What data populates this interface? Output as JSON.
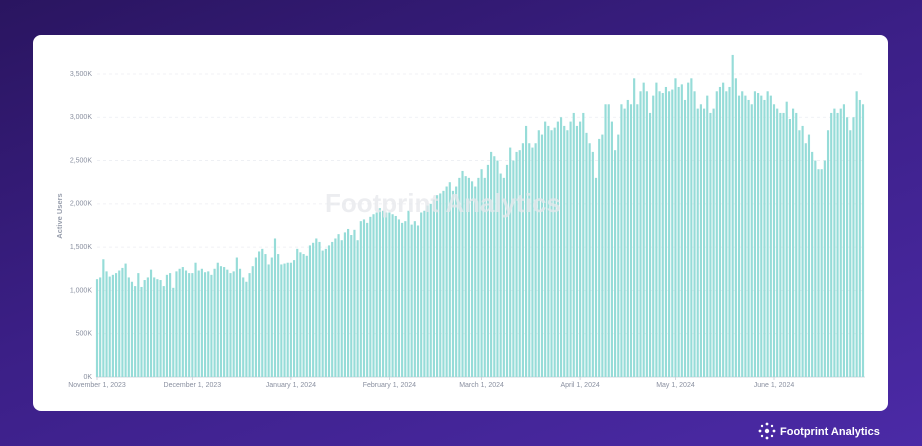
{
  "chart_data": {
    "type": "bar",
    "y_label": "Active Users",
    "watermark": "Footprint Analytics",
    "brand": "Footprint Analytics",
    "color": "#96dcd8",
    "grid": true,
    "ylim": [
      0,
      3800000
    ],
    "yticks": [
      {
        "value": 0,
        "label": "0K"
      },
      {
        "value": 500000,
        "label": "500K"
      },
      {
        "value": 1000000,
        "label": "1,000K"
      },
      {
        "value": 1500000,
        "label": "1,500K"
      },
      {
        "value": 2000000,
        "label": "2,000K"
      },
      {
        "value": 2500000,
        "label": "2,500K"
      },
      {
        "value": 3000000,
        "label": "3,000K"
      },
      {
        "value": 3500000,
        "label": "3,500K"
      }
    ],
    "xlim": [
      "2023-11-01",
      "2024-06-29"
    ],
    "xticks": [
      {
        "value": "2023-11-01",
        "label": "November 1, 2023"
      },
      {
        "value": "2023-12-01",
        "label": "December 1, 2023"
      },
      {
        "value": "2024-01-01",
        "label": "January 1, 2024"
      },
      {
        "value": "2024-02-01",
        "label": "February 1, 2024"
      },
      {
        "value": "2024-03-01",
        "label": "March 1, 2024"
      },
      {
        "value": "2024-04-01",
        "label": "April 1, 2024"
      },
      {
        "value": "2024-05-01",
        "label": "May 1, 2024"
      },
      {
        "value": "2024-06-01",
        "label": "June 1, 2024"
      }
    ],
    "x": [
      "2023-11-01",
      "2023-11-02",
      "2023-11-03",
      "2023-11-04",
      "2023-11-05",
      "2023-11-06",
      "2023-11-07",
      "2023-11-08",
      "2023-11-09",
      "2023-11-10",
      "2023-11-11",
      "2023-11-12",
      "2023-11-13",
      "2023-11-14",
      "2023-11-15",
      "2023-11-16",
      "2023-11-17",
      "2023-11-18",
      "2023-11-19",
      "2023-11-20",
      "2023-11-21",
      "2023-11-22",
      "2023-11-23",
      "2023-11-24",
      "2023-11-25",
      "2023-11-26",
      "2023-11-27",
      "2023-11-28",
      "2023-11-29",
      "2023-11-30",
      "2023-12-01",
      "2023-12-02",
      "2023-12-03",
      "2023-12-04",
      "2023-12-05",
      "2023-12-06",
      "2023-12-07",
      "2023-12-08",
      "2023-12-09",
      "2023-12-10",
      "2023-12-11",
      "2023-12-12",
      "2023-12-13",
      "2023-12-14",
      "2023-12-15",
      "2023-12-16",
      "2023-12-17",
      "2023-12-18",
      "2023-12-19",
      "2023-12-20",
      "2023-12-21",
      "2023-12-22",
      "2023-12-23",
      "2023-12-24",
      "2023-12-25",
      "2023-12-26",
      "2023-12-27",
      "2023-12-28",
      "2023-12-29",
      "2023-12-30",
      "2023-12-31",
      "2024-01-01",
      "2024-01-02",
      "2024-01-03",
      "2024-01-04",
      "2024-01-05",
      "2024-01-06",
      "2024-01-07",
      "2024-01-08",
      "2024-01-09",
      "2024-01-10",
      "2024-01-11",
      "2024-01-12",
      "2024-01-13",
      "2024-01-14",
      "2024-01-15",
      "2024-01-16",
      "2024-01-17",
      "2024-01-18",
      "2024-01-19",
      "2024-01-20",
      "2024-01-21",
      "2024-01-22",
      "2024-01-23",
      "2024-01-24",
      "2024-01-25",
      "2024-01-26",
      "2024-01-27",
      "2024-01-28",
      "2024-01-29",
      "2024-01-30",
      "2024-01-31",
      "2024-02-01",
      "2024-02-02",
      "2024-02-03",
      "2024-02-04",
      "2024-02-05",
      "2024-02-06",
      "2024-02-07",
      "2024-02-08",
      "2024-02-09",
      "2024-02-10",
      "2024-02-11",
      "2024-02-12",
      "2024-02-13",
      "2024-02-14",
      "2024-02-15",
      "2024-02-16",
      "2024-02-17",
      "2024-02-18",
      "2024-02-19",
      "2024-02-20",
      "2024-02-21",
      "2024-02-22",
      "2024-02-23",
      "2024-02-24",
      "2024-02-25",
      "2024-02-26",
      "2024-02-27",
      "2024-02-28",
      "2024-02-29",
      "2024-03-01",
      "2024-03-02",
      "2024-03-03",
      "2024-03-04",
      "2024-03-05",
      "2024-03-06",
      "2024-03-07",
      "2024-03-08",
      "2024-03-09",
      "2024-03-10",
      "2024-03-11",
      "2024-03-12",
      "2024-03-13",
      "2024-03-14",
      "2024-03-15",
      "2024-03-16",
      "2024-03-17",
      "2024-03-18",
      "2024-03-19",
      "2024-03-20",
      "2024-03-21",
      "2024-03-22",
      "2024-03-23",
      "2024-03-24",
      "2024-03-25",
      "2024-03-26",
      "2024-03-27",
      "2024-03-28",
      "2024-03-29",
      "2024-03-30",
      "2024-03-31",
      "2024-04-01",
      "2024-04-02",
      "2024-04-03",
      "2024-04-04",
      "2024-04-05",
      "2024-04-06",
      "2024-04-07",
      "2024-04-08",
      "2024-04-09",
      "2024-04-10",
      "2024-04-11",
      "2024-04-12",
      "2024-04-13",
      "2024-04-14",
      "2024-04-15",
      "2024-04-16",
      "2024-04-17",
      "2024-04-18",
      "2024-04-19",
      "2024-04-20",
      "2024-04-21",
      "2024-04-22",
      "2024-04-23",
      "2024-04-24",
      "2024-04-25",
      "2024-04-26",
      "2024-04-27",
      "2024-04-28",
      "2024-04-29",
      "2024-04-30",
      "2024-05-01",
      "2024-05-02",
      "2024-05-03",
      "2024-05-04",
      "2024-05-05",
      "2024-05-06",
      "2024-05-07",
      "2024-05-08",
      "2024-05-09",
      "2024-05-10",
      "2024-05-11",
      "2024-05-12",
      "2024-05-13",
      "2024-05-14",
      "2024-05-15",
      "2024-05-16",
      "2024-05-17",
      "2024-05-18",
      "2024-05-19",
      "2024-05-20",
      "2024-05-21",
      "2024-05-22",
      "2024-05-23",
      "2024-05-24",
      "2024-05-25",
      "2024-05-26",
      "2024-05-27",
      "2024-05-28",
      "2024-05-29",
      "2024-05-30",
      "2024-05-31",
      "2024-06-01",
      "2024-06-02",
      "2024-06-03",
      "2024-06-04",
      "2024-06-05",
      "2024-06-06",
      "2024-06-07",
      "2024-06-08",
      "2024-06-09",
      "2024-06-10",
      "2024-06-11",
      "2024-06-12",
      "2024-06-13",
      "2024-06-14",
      "2024-06-15",
      "2024-06-16",
      "2024-06-17",
      "2024-06-18",
      "2024-06-19",
      "2024-06-20",
      "2024-06-21",
      "2024-06-22",
      "2024-06-23",
      "2024-06-24",
      "2024-06-25",
      "2024-06-26",
      "2024-06-27",
      "2024-06-28",
      "2024-06-29"
    ],
    "values": [
      1130000,
      1150000,
      1360000,
      1220000,
      1160000,
      1180000,
      1200000,
      1230000,
      1260000,
      1310000,
      1150000,
      1100000,
      1050000,
      1200000,
      1040000,
      1120000,
      1150000,
      1240000,
      1150000,
      1130000,
      1120000,
      1050000,
      1180000,
      1200000,
      1030000,
      1220000,
      1250000,
      1270000,
      1230000,
      1200000,
      1200000,
      1320000,
      1230000,
      1250000,
      1210000,
      1220000,
      1180000,
      1250000,
      1320000,
      1280000,
      1270000,
      1240000,
      1200000,
      1220000,
      1380000,
      1250000,
      1150000,
      1100000,
      1200000,
      1280000,
      1380000,
      1450000,
      1480000,
      1420000,
      1300000,
      1380000,
      1600000,
      1420000,
      1300000,
      1310000,
      1320000,
      1320000,
      1350000,
      1480000,
      1440000,
      1420000,
      1400000,
      1520000,
      1550000,
      1600000,
      1560000,
      1460000,
      1480000,
      1520000,
      1560000,
      1600000,
      1650000,
      1580000,
      1670000,
      1710000,
      1640000,
      1700000,
      1580000,
      1800000,
      1820000,
      1780000,
      1850000,
      1880000,
      1900000,
      1950000,
      1920000,
      1900000,
      1900000,
      1880000,
      1860000,
      1820000,
      1780000,
      1800000,
      1920000,
      1760000,
      1800000,
      1750000,
      1900000,
      1920000,
      1980000,
      2000000,
      2050000,
      2100000,
      2120000,
      2150000,
      2200000,
      2250000,
      2150000,
      2200000,
      2300000,
      2380000,
      2320000,
      2300000,
      2260000,
      2200000,
      2300000,
      2400000,
      2300000,
      2450000,
      2600000,
      2550000,
      2500000,
      2350000,
      2300000,
      2450000,
      2650000,
      2500000,
      2600000,
      2620000,
      2700000,
      2900000,
      2700000,
      2650000,
      2700000,
      2850000,
      2800000,
      2950000,
      2900000,
      2850000,
      2880000,
      2950000,
      3000000,
      2900000,
      2850000,
      2950000,
      3050000,
      2900000,
      2950000,
      3050000,
      2820000,
      2700000,
      2600000,
      2300000,
      2750000,
      2800000,
      3150000,
      3150000,
      2950000,
      2620000,
      2800000,
      3150000,
      3100000,
      3200000,
      3150000,
      3450000,
      3150000,
      3300000,
      3400000,
      3300000,
      3050000,
      3250000,
      3400000,
      3300000,
      3280000,
      3350000,
      3300000,
      3320000,
      3450000,
      3350000,
      3380000,
      3200000,
      3400000,
      3450000,
      3300000,
      3100000,
      3150000,
      3100000,
      3250000,
      3050000,
      3100000,
      3300000,
      3350000,
      3400000,
      3300000,
      3350000,
      3720000,
      3450000,
      3250000,
      3300000,
      3250000,
      3200000,
      3150000,
      3300000,
      3280000,
      3250000,
      3200000,
      3300000,
      3250000,
      3150000,
      3100000,
      3050000,
      3050000,
      3180000,
      2980000,
      3100000,
      3050000,
      2850000,
      2900000,
      2700000,
      2800000,
      2600000,
      2500000,
      2400000,
      2400000,
      2500000,
      2850000,
      3050000,
      3100000,
      3050000,
      3100000,
      3150000,
      3000000,
      2850000,
      3000000,
      3300000,
      3200000,
      3150000
    ]
  }
}
